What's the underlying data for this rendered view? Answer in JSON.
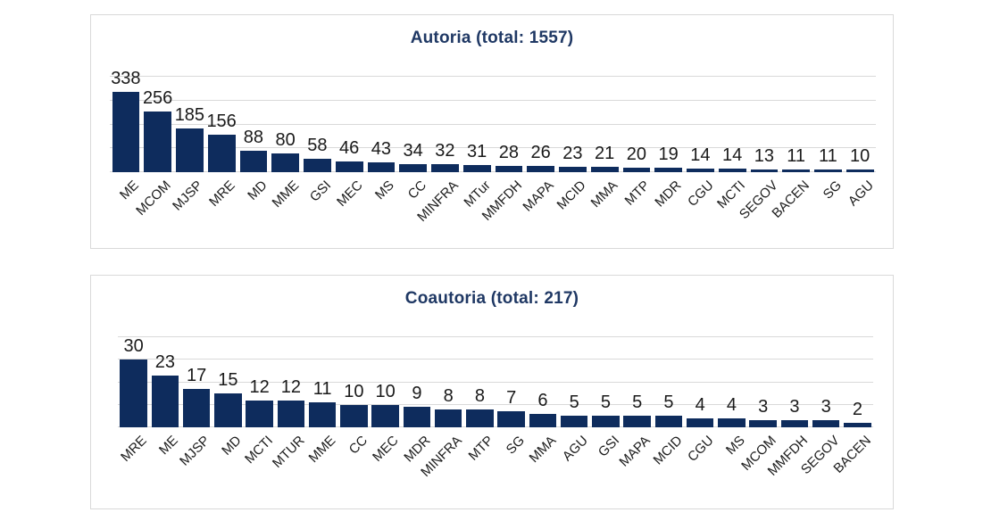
{
  "page": {
    "background": "#ffffff"
  },
  "colors": {
    "bar": "#0e2c5d",
    "title": "#1f3864",
    "data_label": "#1a1a1a",
    "category_label": "#1c1c1c",
    "gridline": "#d9d9d9",
    "panel_border": "#d9d9d9",
    "panel_background": "#ffffff"
  },
  "chart_data": [
    {
      "type": "bar",
      "title": "Autoria (total: 1557)",
      "total": 1557,
      "categories": [
        "ME",
        "MCOM",
        "MJSP",
        "MRE",
        "MD",
        "MME",
        "GSI",
        "MEC",
        "MS",
        "CC",
        "MINFRA",
        "MTur",
        "MMFDH",
        "MAPA",
        "MCID",
        "MMA",
        "MTP",
        "MDR",
        "CGU",
        "MCTI",
        "SEGOV",
        "BACEN",
        "SG",
        "AGU"
      ],
      "values": [
        338,
        256,
        185,
        156,
        88,
        80,
        58,
        46,
        43,
        34,
        32,
        31,
        28,
        26,
        23,
        21,
        20,
        19,
        14,
        14,
        13,
        11,
        11,
        10
      ],
      "xlabel": "",
      "ylabel": "",
      "ylim": [
        0,
        400
      ],
      "grid_interval": 100,
      "grid": true,
      "legend": "none",
      "data_labels": "above-bars",
      "category_label_rotation": -45
    },
    {
      "type": "bar",
      "title": "Coautoria (total: 217)",
      "total": 217,
      "categories": [
        "MRE",
        "ME",
        "MJSP",
        "MD",
        "MCTI",
        "MTUR",
        "MME",
        "CC",
        "MEC",
        "MDR",
        "MINFRA",
        "MTP",
        "SG",
        "MMA",
        "AGU",
        "GSI",
        "MAPA",
        "MCID",
        "CGU",
        "MS",
        "MCOM",
        "MMFDH",
        "SEGOV",
        "BACEN"
      ],
      "values": [
        30,
        23,
        17,
        15,
        12,
        12,
        11,
        10,
        10,
        9,
        8,
        8,
        7,
        6,
        5,
        5,
        5,
        5,
        4,
        4,
        3,
        3,
        3,
        2
      ],
      "xlabel": "",
      "ylabel": "",
      "ylim": [
        0,
        40
      ],
      "grid_interval": 10,
      "grid": true,
      "legend": "none",
      "data_labels": "above-bars",
      "category_label_rotation": -45
    }
  ]
}
